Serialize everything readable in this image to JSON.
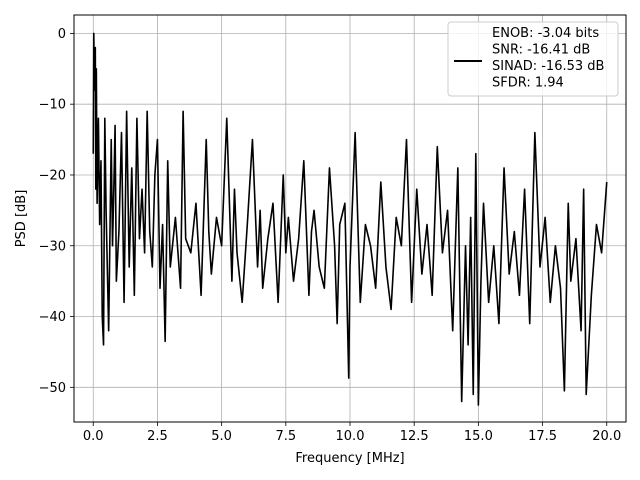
{
  "chart_data": {
    "type": "line",
    "title": "",
    "xlabel": "Frequency [MHz]",
    "ylabel": "PSD [dB]",
    "xlim": [
      -0.75,
      20.75
    ],
    "ylim": [
      -54.9,
      2.6
    ],
    "x_ticks": [
      0.0,
      2.5,
      5.0,
      7.5,
      10.0,
      12.5,
      15.0,
      17.5,
      20.0
    ],
    "x_tick_labels": [
      "0.0",
      "2.5",
      "5.0",
      "7.5",
      "10.0",
      "12.5",
      "15.0",
      "17.5",
      "20.0"
    ],
    "y_ticks": [
      0,
      -10,
      -20,
      -30,
      -40,
      -50
    ],
    "y_tick_labels": [
      "0",
      "−10",
      "−20",
      "−30",
      "−40",
      "−50"
    ],
    "grid": true,
    "legend_position": "top-right",
    "line_color": "#000000",
    "series": [
      {
        "name": "ENOB: -3.04 bits\nSNR: -16.41 dB\nSINAD: -16.53 dB\nSFDR: 1.94",
        "x": [
          0.0,
          0.02,
          0.05,
          0.08,
          0.1,
          0.12,
          0.15,
          0.2,
          0.25,
          0.3,
          0.35,
          0.4,
          0.45,
          0.5,
          0.6,
          0.7,
          0.75,
          0.8,
          0.85,
          0.9,
          1.0,
          1.1,
          1.2,
          1.3,
          1.4,
          1.5,
          1.6,
          1.7,
          1.8,
          1.9,
          2.0,
          2.1,
          2.2,
          2.3,
          2.4,
          2.5,
          2.6,
          2.7,
          2.8,
          2.9,
          3.0,
          3.2,
          3.4,
          3.5,
          3.6,
          3.8,
          4.0,
          4.2,
          4.4,
          4.5,
          4.6,
          4.8,
          5.0,
          5.2,
          5.4,
          5.5,
          5.6,
          5.8,
          6.0,
          6.2,
          6.4,
          6.5,
          6.6,
          6.8,
          7.0,
          7.2,
          7.4,
          7.5,
          7.6,
          7.8,
          8.0,
          8.2,
          8.4,
          8.5,
          8.6,
          8.8,
          9.0,
          9.2,
          9.4,
          9.5,
          9.6,
          9.8,
          9.95,
          10.0,
          10.2,
          10.4,
          10.6,
          10.8,
          11.0,
          11.2,
          11.4,
          11.6,
          11.8,
          12.0,
          12.2,
          12.4,
          12.6,
          12.8,
          13.0,
          13.2,
          13.4,
          13.6,
          13.8,
          14.0,
          14.2,
          14.35,
          14.5,
          14.6,
          14.7,
          14.8,
          14.9,
          15.0,
          15.1,
          15.2,
          15.4,
          15.6,
          15.8,
          16.0,
          16.2,
          16.4,
          16.6,
          16.8,
          17.0,
          17.2,
          17.4,
          17.6,
          17.8,
          18.0,
          18.2,
          18.35,
          18.5,
          18.6,
          18.8,
          19.0,
          19.1,
          19.2,
          19.4,
          19.6,
          19.8,
          20.0
        ],
        "values": [
          -17,
          0,
          -8,
          -2,
          -22,
          -5,
          -24,
          -12,
          -27,
          -18,
          -40,
          -44,
          -12,
          -25,
          -42,
          -15,
          -30,
          -22,
          -13,
          -35,
          -28,
          -14,
          -38,
          -11,
          -33,
          -19,
          -37,
          -12,
          -29,
          -22,
          -31,
          -11,
          -28,
          -33,
          -20,
          -15,
          -36,
          -27,
          -43.5,
          -18,
          -33,
          -26,
          -36,
          -11,
          -29,
          -31,
          -24,
          -37,
          -15,
          -28,
          -34,
          -26,
          -30,
          -12,
          -35,
          -22,
          -31,
          -38,
          -27,
          -15,
          -33,
          -25,
          -36,
          -29,
          -24,
          -38,
          -20,
          -31,
          -26,
          -35,
          -29,
          -18,
          -37,
          -28,
          -25,
          -33,
          -36,
          -19,
          -30,
          -41,
          -27,
          -24,
          -48.7,
          -33,
          -14,
          -38,
          -27,
          -30,
          -36,
          -21,
          -33,
          -39,
          -26,
          -30,
          -15,
          -38,
          -22,
          -34,
          -27,
          -37,
          -16,
          -31,
          -25,
          -42,
          -19,
          -52,
          -30,
          -44,
          -26,
          -51,
          -17,
          -52.5,
          -35,
          -24,
          -38,
          -30,
          -41,
          -19,
          -34,
          -28,
          -37,
          -22,
          -41,
          -14,
          -33,
          -26,
          -38,
          -30,
          -36,
          -50.5,
          -24,
          -35,
          -29,
          -42,
          -22,
          -51,
          -37,
          -27,
          -31,
          -21
        ]
      }
    ]
  }
}
